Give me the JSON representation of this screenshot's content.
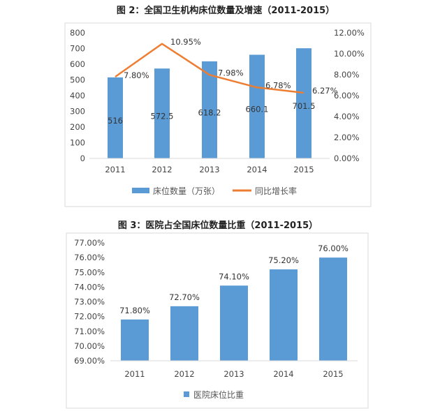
{
  "chart_data": [
    {
      "type": "bar+line",
      "title": "图 2：全国卫生机构床位数量及增速（2011-2015）",
      "categories": [
        "2011",
        "2012",
        "2013",
        "2014",
        "2015"
      ],
      "series": [
        {
          "name": "床位数量（万张）",
          "type": "bar",
          "axis": "left",
          "values": [
            516,
            572.5,
            618.2,
            660.1,
            701.5
          ],
          "labels": [
            "516",
            "572.5",
            "618.2",
            "660.1",
            "701.5"
          ],
          "color": "#5B9BD5"
        },
        {
          "name": "同比增长率",
          "type": "line",
          "axis": "right",
          "values": [
            7.8,
            10.95,
            7.98,
            6.78,
            6.27
          ],
          "labels": [
            "7.80%",
            "10.95%",
            "7.98%",
            "6.78%",
            "6.27%"
          ],
          "color": "#ED7D31"
        }
      ],
      "y_left": {
        "range": [
          0,
          800
        ],
        "ticks": [
          "0",
          "100",
          "200",
          "300",
          "400",
          "500",
          "600",
          "700",
          "800"
        ]
      },
      "y_right": {
        "range": [
          0,
          12
        ],
        "ticks": [
          "0.00%",
          "2.00%",
          "4.00%",
          "6.00%",
          "8.00%",
          "10.00%",
          "12.00%"
        ]
      },
      "grid": false,
      "legend": "bottom"
    },
    {
      "type": "bar",
      "title": "图 3：医院占全国床位数量比重（2011-2015）",
      "categories": [
        "2011",
        "2012",
        "2013",
        "2014",
        "2015"
      ],
      "series": [
        {
          "name": "医院床位比重",
          "values": [
            71.8,
            72.7,
            74.1,
            75.2,
            76.0
          ],
          "labels": [
            "71.80%",
            "72.70%",
            "74.10%",
            "75.20%",
            "76.00%"
          ],
          "color": "#5B9BD5"
        }
      ],
      "y": {
        "range": [
          69,
          77
        ],
        "ticks": [
          "69.00%",
          "70.00%",
          "71.00%",
          "72.00%",
          "73.00%",
          "74.00%",
          "75.00%",
          "76.00%",
          "77.00%"
        ]
      },
      "grid": false,
      "legend": "bottom"
    }
  ]
}
